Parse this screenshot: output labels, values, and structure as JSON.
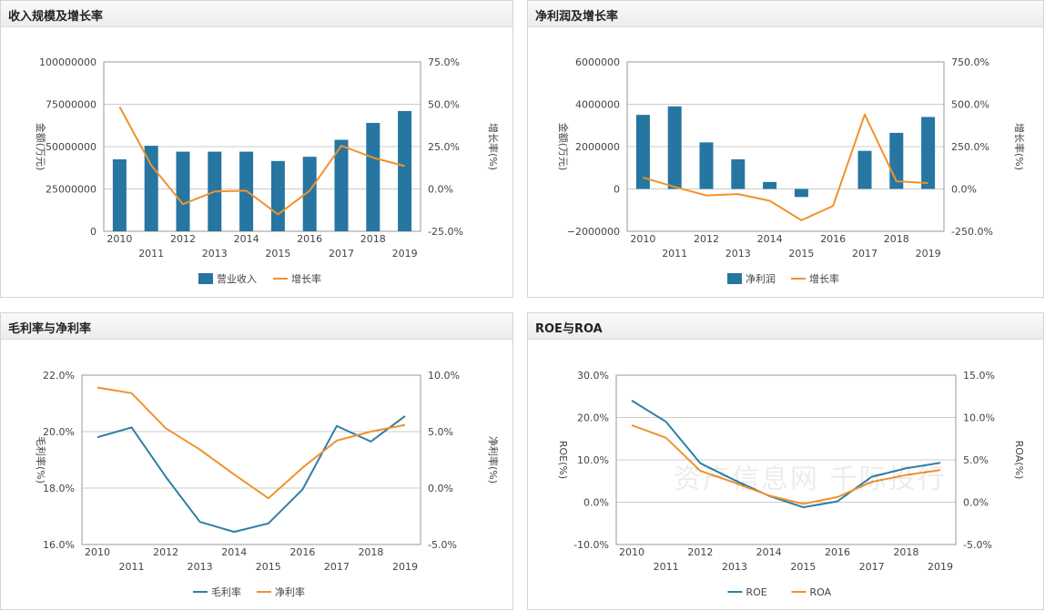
{
  "colors": {
    "bar": "#2676a1",
    "line_orange": "#f0922d",
    "line_blue": "#2e7fa6",
    "grid": "#cccccc",
    "axis": "#999999"
  },
  "watermark": "资产信息网 千际投行",
  "chart_data": [
    {
      "id": "rev",
      "type": "bar+line",
      "title": "收入规模及增长率",
      "categories": [
        "2010",
        "2011",
        "2012",
        "2013",
        "2014",
        "2015",
        "2016",
        "2017",
        "2018",
        "2019"
      ],
      "ylabel": "金额(万元)",
      "y2label": "增长率(%)",
      "ylim": [
        0,
        100000000
      ],
      "yticks": [
        "0",
        "25000000",
        "50000000",
        "75000000",
        "100000000"
      ],
      "y2lim": [
        -25,
        75
      ],
      "y2ticks": [
        "-25.0%",
        "0.0%",
        "25.0%",
        "50.0%",
        "75.0%"
      ],
      "bar_series": {
        "name": "营业收入",
        "values": [
          42500000,
          50500000,
          47000000,
          47000000,
          47000000,
          41500000,
          44000000,
          54000000,
          64000000,
          71000000
        ]
      },
      "line_series": [
        {
          "name": "增长率",
          "values": [
            48.5,
            14,
            -9,
            -1.5,
            -1,
            -15,
            -1,
            25.5,
            18.5,
            13.5
          ],
          "axis": "right",
          "color_key": "line_orange"
        }
      ],
      "legend": [
        {
          "name": "营业收入",
          "kind": "bar"
        },
        {
          "name": "增长率",
          "kind": "line",
          "color_key": "line_orange"
        }
      ],
      "grid": true,
      "legend_position": "bottom"
    },
    {
      "id": "np",
      "type": "bar+line",
      "title": "净利润及增长率",
      "categories": [
        "2010",
        "2011",
        "2012",
        "2013",
        "2014",
        "2015",
        "2016",
        "2017",
        "2018",
        "2019"
      ],
      "ylabel": "金额(万元)",
      "y2label": "增长率(%)",
      "ylim": [
        -2000000,
        6000000
      ],
      "yticks": [
        "−2000000",
        "0",
        "2000000",
        "4000000",
        "6000000"
      ],
      "y2lim": [
        -250,
        750
      ],
      "y2ticks": [
        "-250.0%",
        "0.0%",
        "250.0%",
        "500.0%",
        "750.0%"
      ],
      "bar_series": {
        "name": "净利润",
        "values": [
          3500000,
          3900000,
          2200000,
          1400000,
          330000,
          -380000,
          0,
          1800000,
          2650000,
          3400000
        ]
      },
      "line_series": [
        {
          "name": "增长率",
          "values": [
            68,
            12,
            -38,
            -30,
            -70,
            -185,
            -100,
            440,
            45,
            35
          ],
          "axis": "right",
          "color_key": "line_orange"
        }
      ],
      "legend": [
        {
          "name": "净利润",
          "kind": "bar"
        },
        {
          "name": "增长率",
          "kind": "line",
          "color_key": "line_orange"
        }
      ],
      "grid": true,
      "legend_position": "bottom"
    },
    {
      "id": "margin",
      "type": "line",
      "title": "毛利率与净利率",
      "categories": [
        "2010",
        "2011",
        "2012",
        "2013",
        "2014",
        "2015",
        "2016",
        "2017",
        "2018",
        "2019"
      ],
      "ylabel": "毛利率(%)",
      "y2label": "净利率(%)",
      "ylim": [
        16,
        22
      ],
      "yticks": [
        "16.0%",
        "18.0%",
        "20.0%",
        "22.0%"
      ],
      "y2lim": [
        -5,
        10
      ],
      "y2ticks": [
        "-5.0%",
        "0.0%",
        "5.0%",
        "10.0%"
      ],
      "line_series": [
        {
          "name": "毛利率",
          "values": [
            19.8,
            20.15,
            18.4,
            16.8,
            16.45,
            16.75,
            17.95,
            20.2,
            19.65,
            20.55
          ],
          "axis": "left",
          "color_key": "line_blue"
        },
        {
          "name": "净利率",
          "values": [
            8.9,
            8.4,
            5.3,
            3.4,
            1.2,
            -0.9,
            1.8,
            4.2,
            5.0,
            5.6
          ],
          "axis": "right",
          "color_key": "line_orange"
        }
      ],
      "legend": [
        {
          "name": "毛利率",
          "kind": "line",
          "color_key": "line_blue"
        },
        {
          "name": "净利率",
          "kind": "line",
          "color_key": "line_orange"
        }
      ],
      "grid": true,
      "legend_position": "bottom"
    },
    {
      "id": "roe",
      "type": "line",
      "title": "ROE与ROA",
      "categories": [
        "2010",
        "2011",
        "2012",
        "2013",
        "2014",
        "2015",
        "2016",
        "2017",
        "2018",
        "2019"
      ],
      "ylabel": "ROE(%)",
      "y2label": "ROA(%)",
      "ylim": [
        -10,
        30
      ],
      "yticks": [
        "-10.0%",
        "0.0%",
        "10.0%",
        "20.0%",
        "30.0%"
      ],
      "y2lim": [
        -5,
        15
      ],
      "y2ticks": [
        "-5.0%",
        "0.0%",
        "5.0%",
        "10.0%",
        "15.0%"
      ],
      "line_series": [
        {
          "name": "ROE",
          "values": [
            24,
            19,
            9.2,
            5.2,
            1.5,
            -1.2,
            0.2,
            6,
            8,
            9.3
          ],
          "axis": "left",
          "color_key": "line_blue"
        },
        {
          "name": "ROA",
          "values": [
            9.1,
            7.6,
            3.7,
            2.3,
            0.8,
            -0.2,
            0.6,
            2.4,
            3.2,
            3.8
          ],
          "axis": "right",
          "color_key": "line_orange"
        }
      ],
      "legend": [
        {
          "name": "ROE",
          "kind": "line",
          "color_key": "line_blue"
        },
        {
          "name": "ROA",
          "kind": "line",
          "color_key": "line_orange"
        }
      ],
      "grid": true,
      "legend_position": "bottom"
    }
  ]
}
